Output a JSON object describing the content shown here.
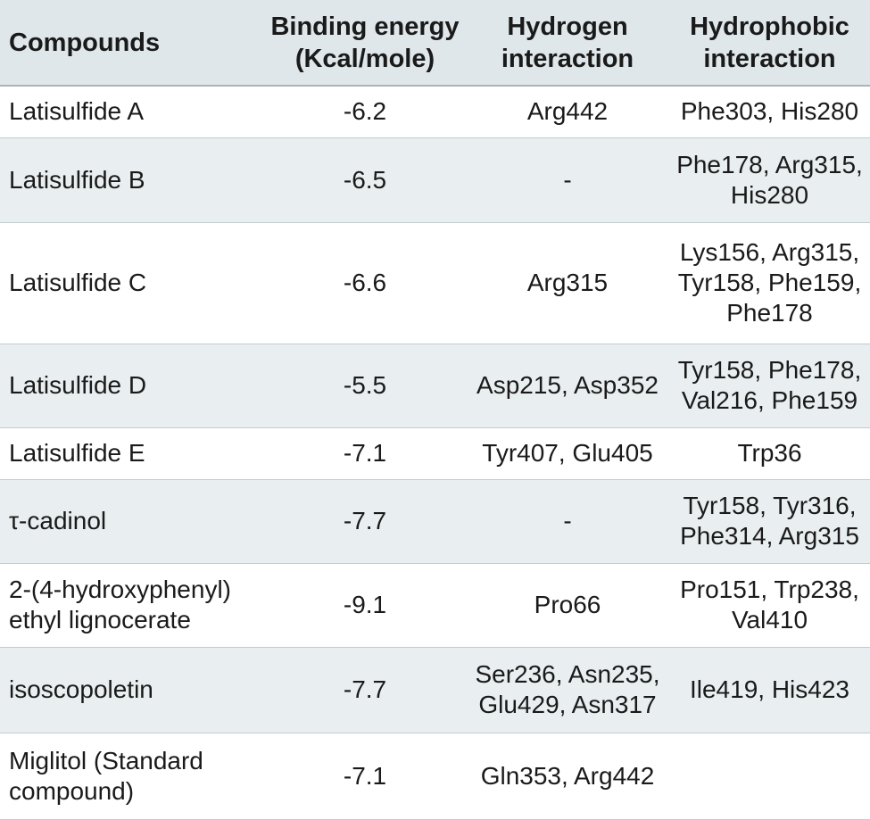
{
  "table": {
    "headers": [
      [
        "Compounds"
      ],
      [
        "Binding energy",
        "(Kcal/mole)"
      ],
      [
        "Hydrogen",
        "interaction"
      ],
      [
        "Hydrophobic",
        "interaction"
      ]
    ],
    "rows": [
      {
        "compound": [
          "Latisulfide A"
        ],
        "binding_energy": "-6.2",
        "hydrogen": [
          "Arg442"
        ],
        "hydrophobic": [
          "Phe303, His280"
        ]
      },
      {
        "compound": [
          "Latisulfide B"
        ],
        "binding_energy": "-6.5",
        "hydrogen": [
          "-"
        ],
        "hydrophobic": [
          "Phe178, Arg315,",
          "His280"
        ]
      },
      {
        "compound": [
          "Latisulfide C"
        ],
        "binding_energy": "-6.6",
        "hydrogen": [
          "Arg315"
        ],
        "hydrophobic": [
          "Lys156, Arg315,",
          "Tyr158, Phe159,",
          "Phe178"
        ]
      },
      {
        "compound": [
          "Latisulfide D"
        ],
        "binding_energy": "-5.5",
        "hydrogen": [
          "Asp215, Asp352"
        ],
        "hydrophobic": [
          "Tyr158, Phe178,",
          "Val216, Phe159"
        ]
      },
      {
        "compound": [
          "Latisulfide E"
        ],
        "binding_energy": "-7.1",
        "hydrogen": [
          "Tyr407, Glu405"
        ],
        "hydrophobic": [
          "Trp36"
        ]
      },
      {
        "compound": [
          "τ-cadinol"
        ],
        "binding_energy": "-7.7",
        "hydrogen": [
          "-"
        ],
        "hydrophobic": [
          "Tyr158, Tyr316,",
          "Phe314, Arg315"
        ]
      },
      {
        "compound": [
          "2-(4-hydroxyphenyl)",
          "ethyl lignocerate"
        ],
        "binding_energy": "-9.1",
        "hydrogen": [
          "Pro66"
        ],
        "hydrophobic": [
          "Pro151, Trp238,",
          "Val410"
        ]
      },
      {
        "compound": [
          "isoscopoletin"
        ],
        "binding_energy": "-7.7",
        "hydrogen": [
          "Ser236, Asn235,",
          "Glu429, Asn317"
        ],
        "hydrophobic": [
          "Ile419, His423"
        ]
      },
      {
        "compound": [
          "Miglitol (Standard",
          "compound)"
        ],
        "binding_energy": "-7.1",
        "hydrogen": [
          "Gln353, Arg442"
        ],
        "hydrophobic": []
      }
    ]
  }
}
